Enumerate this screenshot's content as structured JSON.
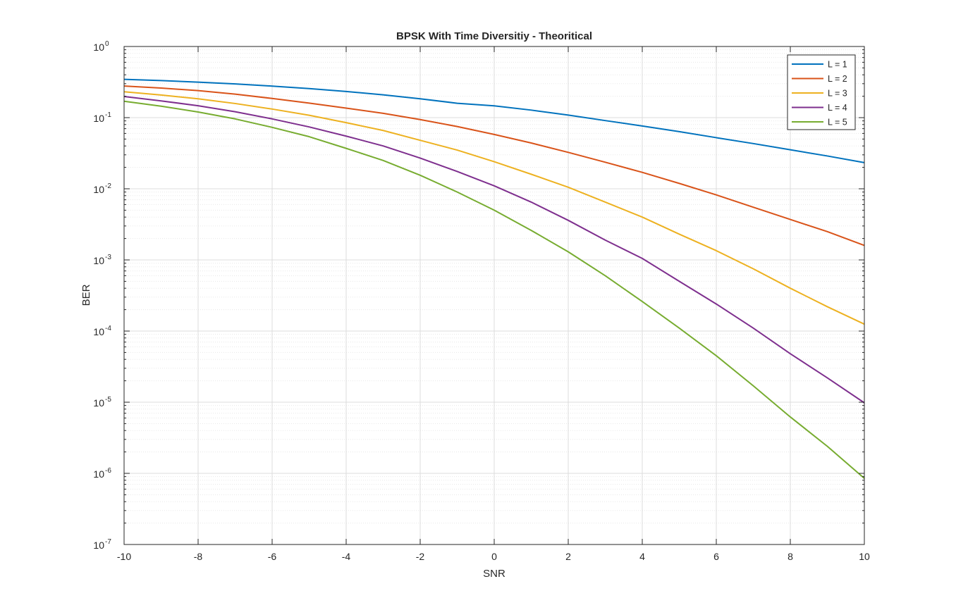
{
  "chart_data": {
    "type": "line",
    "title": "BPSK With Time Diversitiy - Theoritical",
    "xlabel": "SNR",
    "ylabel": "BER",
    "xlim": [
      -10,
      10
    ],
    "ylim": [
      1e-07,
      1
    ],
    "yscale": "log",
    "grid": true,
    "minor_grid": true,
    "legend_position": "top-right",
    "x_ticks": [
      "-10",
      "-8",
      "-6",
      "-4",
      "-2",
      "0",
      "2",
      "4",
      "6",
      "8",
      "10"
    ],
    "y_ticks": [
      {
        "base": "10",
        "exp": "-7"
      },
      {
        "base": "10",
        "exp": "-6"
      },
      {
        "base": "10",
        "exp": "-5"
      },
      {
        "base": "10",
        "exp": "-4"
      },
      {
        "base": "10",
        "exp": "-3"
      },
      {
        "base": "10",
        "exp": "-2"
      },
      {
        "base": "10",
        "exp": "-1"
      },
      {
        "base": "10",
        "exp": "0"
      }
    ],
    "x": [
      -10,
      -9,
      -8,
      -7,
      -6,
      -5,
      -4,
      -3,
      -2,
      -1,
      0,
      1,
      2,
      3,
      4,
      5,
      6,
      7,
      8,
      9,
      10
    ],
    "series": [
      {
        "name": "L = 1",
        "color": "#0072BD",
        "values": [
          0.3457,
          0.3315,
          0.3154,
          0.2975,
          0.2777,
          0.2562,
          0.2332,
          0.2091,
          0.1842,
          0.1593,
          0.1464,
          0.1276,
          0.1087,
          0.0909,
          0.0763,
          0.0636,
          0.0523,
          0.0432,
          0.0353,
          0.0289,
          0.0233
        ]
      },
      {
        "name": "L = 2",
        "color": "#D95319",
        "values": [
          0.278,
          0.2604,
          0.2397,
          0.214,
          0.186,
          0.16,
          0.136,
          0.115,
          0.094,
          0.075,
          0.058,
          0.044,
          0.0325,
          0.0236,
          0.017,
          0.0119,
          0.0082,
          0.0055,
          0.0037,
          0.0025,
          0.0016
        ]
      },
      {
        "name": "L = 3",
        "color": "#EDB120",
        "values": [
          0.231,
          0.208,
          0.184,
          0.158,
          0.132,
          0.108,
          0.085,
          0.066,
          0.048,
          0.035,
          0.024,
          0.016,
          0.0105,
          0.0065,
          0.004,
          0.0023,
          0.00135,
          0.00075,
          0.0004,
          0.00022,
          0.000125
        ]
      },
      {
        "name": "L = 4",
        "color": "#7E2F8E",
        "values": [
          0.198,
          0.172,
          0.147,
          0.121,
          0.096,
          0.074,
          0.055,
          0.04,
          0.027,
          0.0175,
          0.011,
          0.0065,
          0.0036,
          0.0019,
          0.00105,
          0.0005,
          0.00024,
          0.00011,
          4.8e-05,
          2.2e-05,
          9.8e-06
        ]
      },
      {
        "name": "L = 5",
        "color": "#77AC30",
        "values": [
          0.17,
          0.145,
          0.12,
          0.096,
          0.073,
          0.054,
          0.037,
          0.025,
          0.0155,
          0.009,
          0.005,
          0.0026,
          0.0013,
          0.0006,
          0.00026,
          0.00011,
          4.5e-05,
          1.7e-05,
          6.2e-06,
          2.4e-06,
          8.5e-07
        ]
      }
    ]
  }
}
